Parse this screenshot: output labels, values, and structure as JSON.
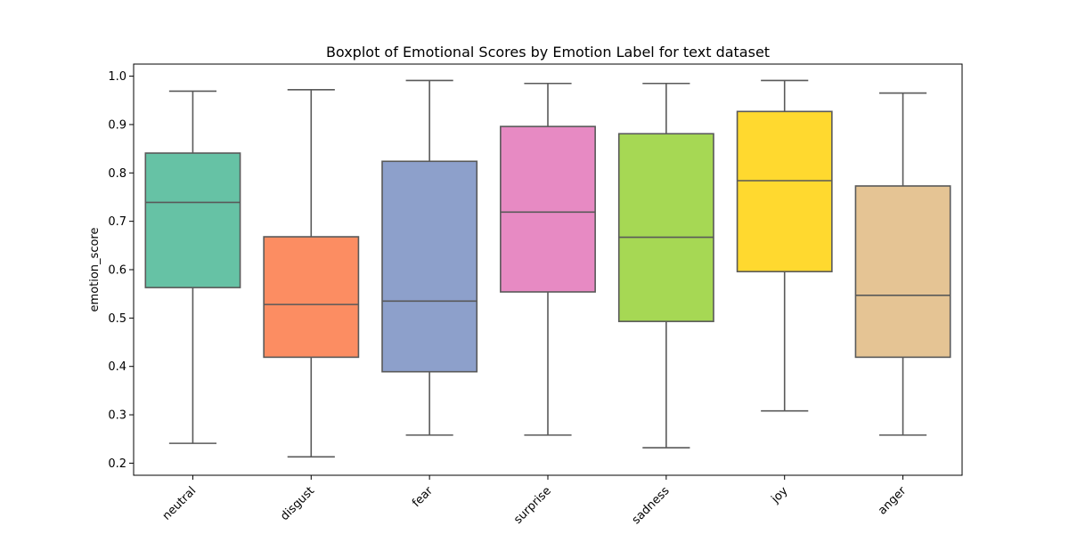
{
  "chart_data": {
    "type": "boxplot",
    "title": "Boxplot of Emotional Scores by Emotion Label for text dataset",
    "xlabel": "",
    "ylabel": "emotion_score",
    "ylim": [
      0.175,
      1.025
    ],
    "yticks": [
      0.2,
      0.3,
      0.4,
      0.5,
      0.6,
      0.7,
      0.8,
      0.9,
      1.0
    ],
    "ytick_labels": [
      "0.2",
      "0.3",
      "0.4",
      "0.5",
      "0.6",
      "0.7",
      "0.8",
      "0.9",
      "1.0"
    ],
    "grid": false,
    "boxes": [
      {
        "label": "neutral",
        "color": "#66c2a5",
        "min": 0.241,
        "q1": 0.563,
        "median": 0.739,
        "q3": 0.841,
        "max": 0.969
      },
      {
        "label": "disgust",
        "color": "#fc8d62",
        "min": 0.213,
        "q1": 0.419,
        "median": 0.528,
        "q3": 0.668,
        "max": 0.972
      },
      {
        "label": "fear",
        "color": "#8da0cb",
        "min": 0.258,
        "q1": 0.389,
        "median": 0.535,
        "q3": 0.824,
        "max": 0.991
      },
      {
        "label": "surprise",
        "color": "#e78ac3",
        "min": 0.258,
        "q1": 0.554,
        "median": 0.719,
        "q3": 0.896,
        "max": 0.985
      },
      {
        "label": "sadness",
        "color": "#a6d854",
        "min": 0.232,
        "q1": 0.493,
        "median": 0.667,
        "q3": 0.881,
        "max": 0.985
      },
      {
        "label": "joy",
        "color": "#ffd92f",
        "min": 0.308,
        "q1": 0.596,
        "median": 0.784,
        "q3": 0.927,
        "max": 0.991
      },
      {
        "label": "anger",
        "color": "#e5c494",
        "min": 0.258,
        "q1": 0.419,
        "median": 0.547,
        "q3": 0.773,
        "max": 0.965
      }
    ],
    "line_color": "#595959"
  }
}
